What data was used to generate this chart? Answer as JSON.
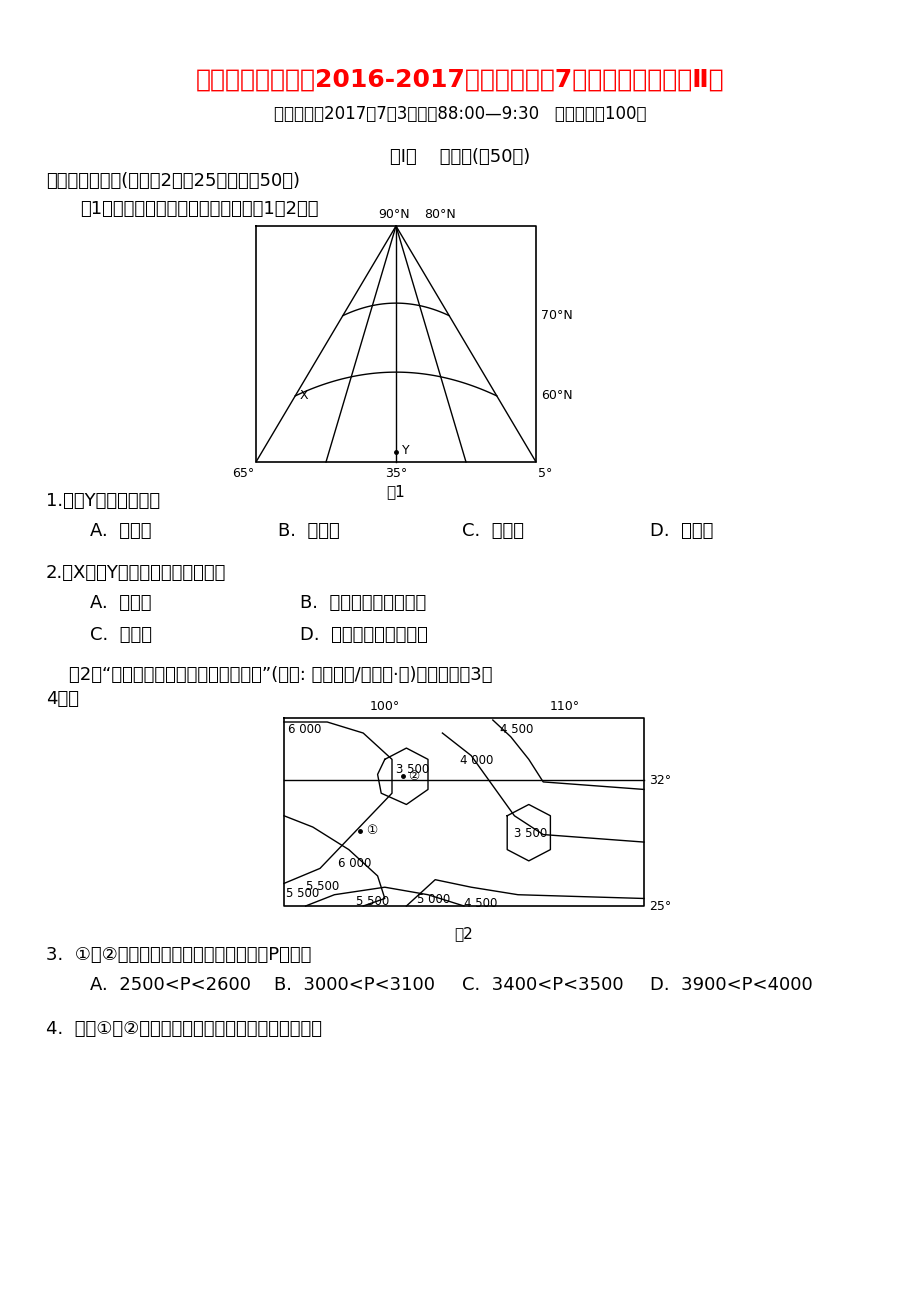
{
  "title": "湖北省孝感市八切2016-2017学年高一地理7月联合考试试题（Ⅱ）",
  "subtitle": "考试时间：2017年7月3日上协88:00—9:30   试卷满分：100分",
  "section1": "第Ⅰ卷    选择题(全50分)",
  "section2": "一、单项选择题(每小题2分，25小题，全50分)",
  "fig1_caption": "图1为地球局部经纬网图。读图，回呗1～2题。",
  "q1": "1.图中Y地位于北京的",
  "q1_opts": [
    "A.  东南方",
    "B.  东北方",
    "C.  西南方",
    "D.  西北方"
  ],
  "q2": "2.从X地到Y地沿最短路径的方向是",
  "q2_opts_row1": [
    "A.  向正东",
    "B.  先向西北，再向西南"
  ],
  "q2_opts_row2": [
    "C.  向正西",
    "D.  先向东北，再向东南"
  ],
  "fig2_intro": "    图2是“某区域太阳年辐射总量等值线图”(单位: 百万焦耳/平方米·年)。据此回呗3～",
  "fig2_intro2": "4题。",
  "q3": "3.  ①、②两地太阳年辐射总量的最小差值P可能是",
  "q3_opts": [
    "A.  2500<P<2600",
    "B.  3000<P<3100",
    "C.  3400<P<3500",
    "D.  3900<P<4000"
  ],
  "q4": "4.  导致①、②两地太阳年辐射总量差异的主要因素是",
  "background_color": "#ffffff",
  "title_color": "#ff0000",
  "text_color": "#000000"
}
